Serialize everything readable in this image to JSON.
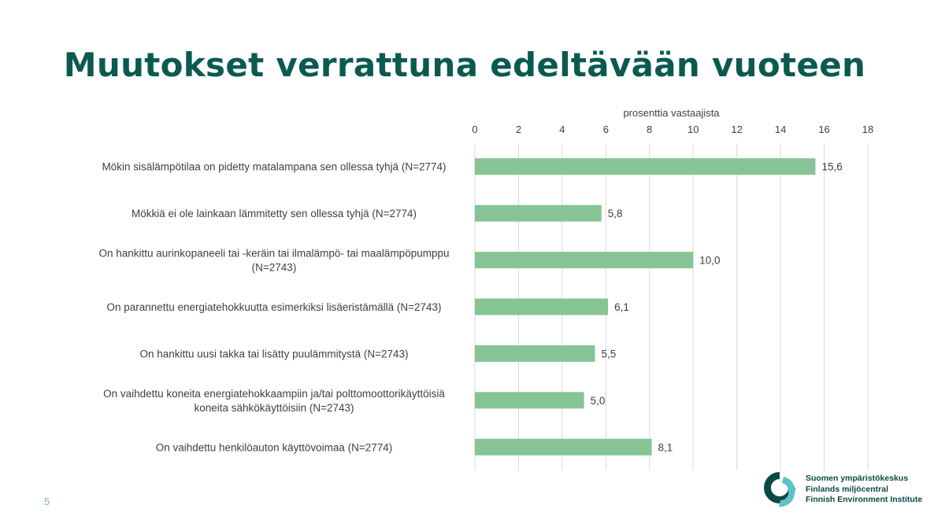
{
  "slide": {
    "title": "Muutokset verrattuna edeltävään vuoteen",
    "page_number": "5"
  },
  "logo": {
    "lines": [
      "Suomen ympäristökeskus",
      "Finlands miljöcentral",
      "Finnish Environment Institute"
    ],
    "colors": {
      "dark": "#0b4a43",
      "teal": "#5ec3c6"
    }
  },
  "colors": {
    "bar": "#86c495",
    "title": "#0b5a50",
    "grid": "#d9d9d9",
    "text": "#404040"
  },
  "chart_data": {
    "type": "bar",
    "orientation": "horizontal",
    "xlabel": "prosenttia vastaajista",
    "xlim": [
      0,
      18
    ],
    "xticks": [
      0,
      2,
      4,
      6,
      8,
      10,
      12,
      14,
      16,
      18
    ],
    "axis_position": "top",
    "grid": true,
    "categories": [
      [
        "Mökin sisälämpötilaa on pidetty matalampana sen ollessa tyhjä (N=2774)"
      ],
      [
        "Mökkiä ei ole lainkaan lämmitetty sen ollessa tyhjä (N=2774)"
      ],
      [
        "On hankittu aurinkopaneeli tai -keräin tai ilmalämpö- tai maalämpöpumppu",
        "(N=2743)"
      ],
      [
        "On parannettu energiatehokkuutta esimerkiksi lisäeristämällä (N=2743)"
      ],
      [
        "On hankittu uusi takka tai lisätty puulämmitystä (N=2743)"
      ],
      [
        "On vaihdettu koneita energiatehokkaampiin ja/tai polttomoottorikäyttöisiä",
        "koneita sähkökäyttöisiin (N=2743)"
      ],
      [
        "On vaihdettu henkilöauton käyttövoimaa (N=2774)"
      ]
    ],
    "values": [
      15.6,
      5.8,
      10.0,
      6.1,
      5.5,
      5.0,
      8.1
    ],
    "value_labels": [
      "15,6",
      "5,8",
      "10,0",
      "6,1",
      "5,5",
      "5,0",
      "8,1"
    ]
  }
}
